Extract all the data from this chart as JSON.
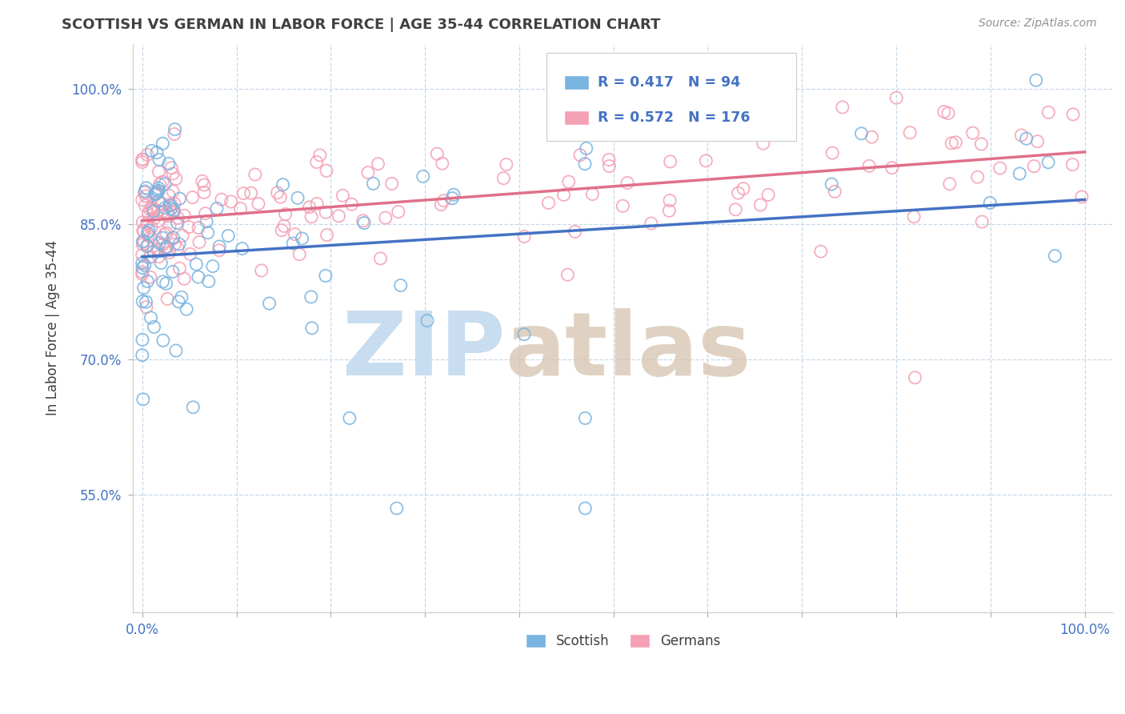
{
  "title": "SCOTTISH VS GERMAN IN LABOR FORCE | AGE 35-44 CORRELATION CHART",
  "source_text": "Source: ZipAtlas.com",
  "ylabel": "In Labor Force | Age 35-44",
  "xlim": [
    -0.01,
    1.03
  ],
  "ylim": [
    0.42,
    1.05
  ],
  "xtick_pos": [
    0.0,
    0.1,
    0.2,
    0.3,
    0.4,
    0.5,
    0.6,
    0.7,
    0.8,
    0.9,
    1.0
  ],
  "xticklabels": [
    "0.0%",
    "",
    "",
    "",
    "",
    "",
    "",
    "",
    "",
    "",
    "100.0%"
  ],
  "ytick_positions": [
    0.55,
    0.7,
    0.85,
    1.0
  ],
  "yticklabels": [
    "55.0%",
    "70.0%",
    "85.0%",
    "100.0%"
  ],
  "scottish_R": 0.417,
  "scottish_N": 94,
  "german_R": 0.572,
  "german_N": 176,
  "scottish_color": "#7ab4e0",
  "german_color": "#f4a0b5",
  "scottish_line_color": "#4472c4",
  "german_line_color": "#e0708a",
  "background_color": "#ffffff",
  "title_color": "#404040",
  "source_color": "#909090",
  "tick_color": "#4472c4",
  "grid_color": "#c8d8e8",
  "watermark_zip_color": "#c8ddf0",
  "watermark_atlas_color": "#d4c0a8"
}
